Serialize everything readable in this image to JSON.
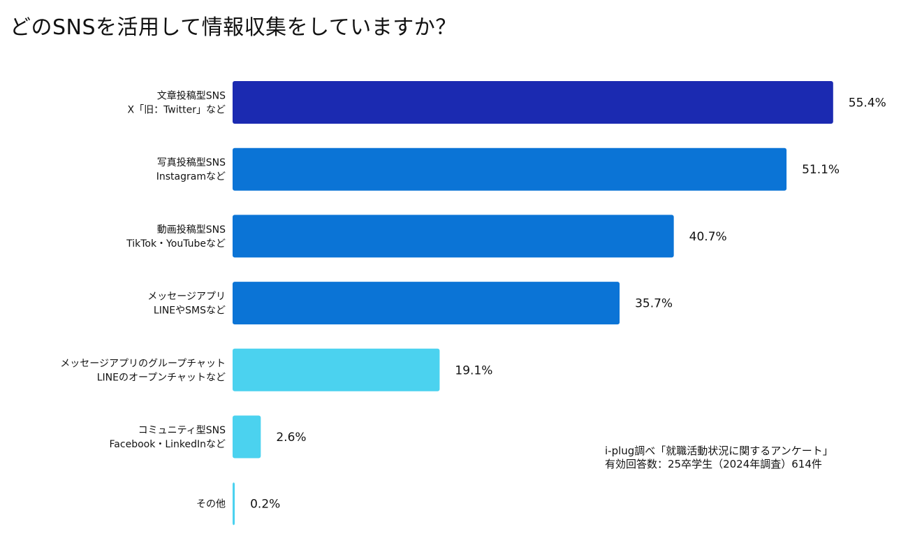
{
  "title": "どのSNSを活用して情報収集をしていますか？",
  "chart_data": {
    "type": "bar",
    "orientation": "horizontal",
    "title": "どのSNSを活用して情報収集をしていますか？",
    "categories": [
      [
        "文章投稿型SNS",
        "X「旧：Twitter」など"
      ],
      [
        "写真投稿型SNS",
        "Instagramなど"
      ],
      [
        "動画投稿型SNS",
        "TikTok・YouTubeなど"
      ],
      [
        "メッセージアプリ",
        "LINEやSMSなど"
      ],
      [
        "メッセージアプリのグループチャット",
        "LINEのオープンチャットなど"
      ],
      [
        "コミュニティ型SNS",
        "Facebook・LinkedInなど"
      ],
      [
        "その他"
      ]
    ],
    "values": [
      55.4,
      51.1,
      40.7,
      35.7,
      19.1,
      2.6,
      0.2
    ],
    "value_labels": [
      "55.4%",
      "51.1%",
      "40.7%",
      "35.7%",
      "19.1%",
      "2.6%",
      "0.2%"
    ],
    "colors": [
      "#1b2ab1",
      "#0b74d6",
      "#0b74d6",
      "#0b74d6",
      "#4bd2ef",
      "#4bd2ef",
      "#4bd2ef"
    ],
    "xlim": [
      0,
      56
    ],
    "grid": false,
    "xlabel": "",
    "ylabel": ""
  },
  "source": {
    "line1": "i-plug調べ「就職活動状況に関するアンケート」",
    "line2": "有効回答数：25卒学生（2024年調査）614件"
  }
}
